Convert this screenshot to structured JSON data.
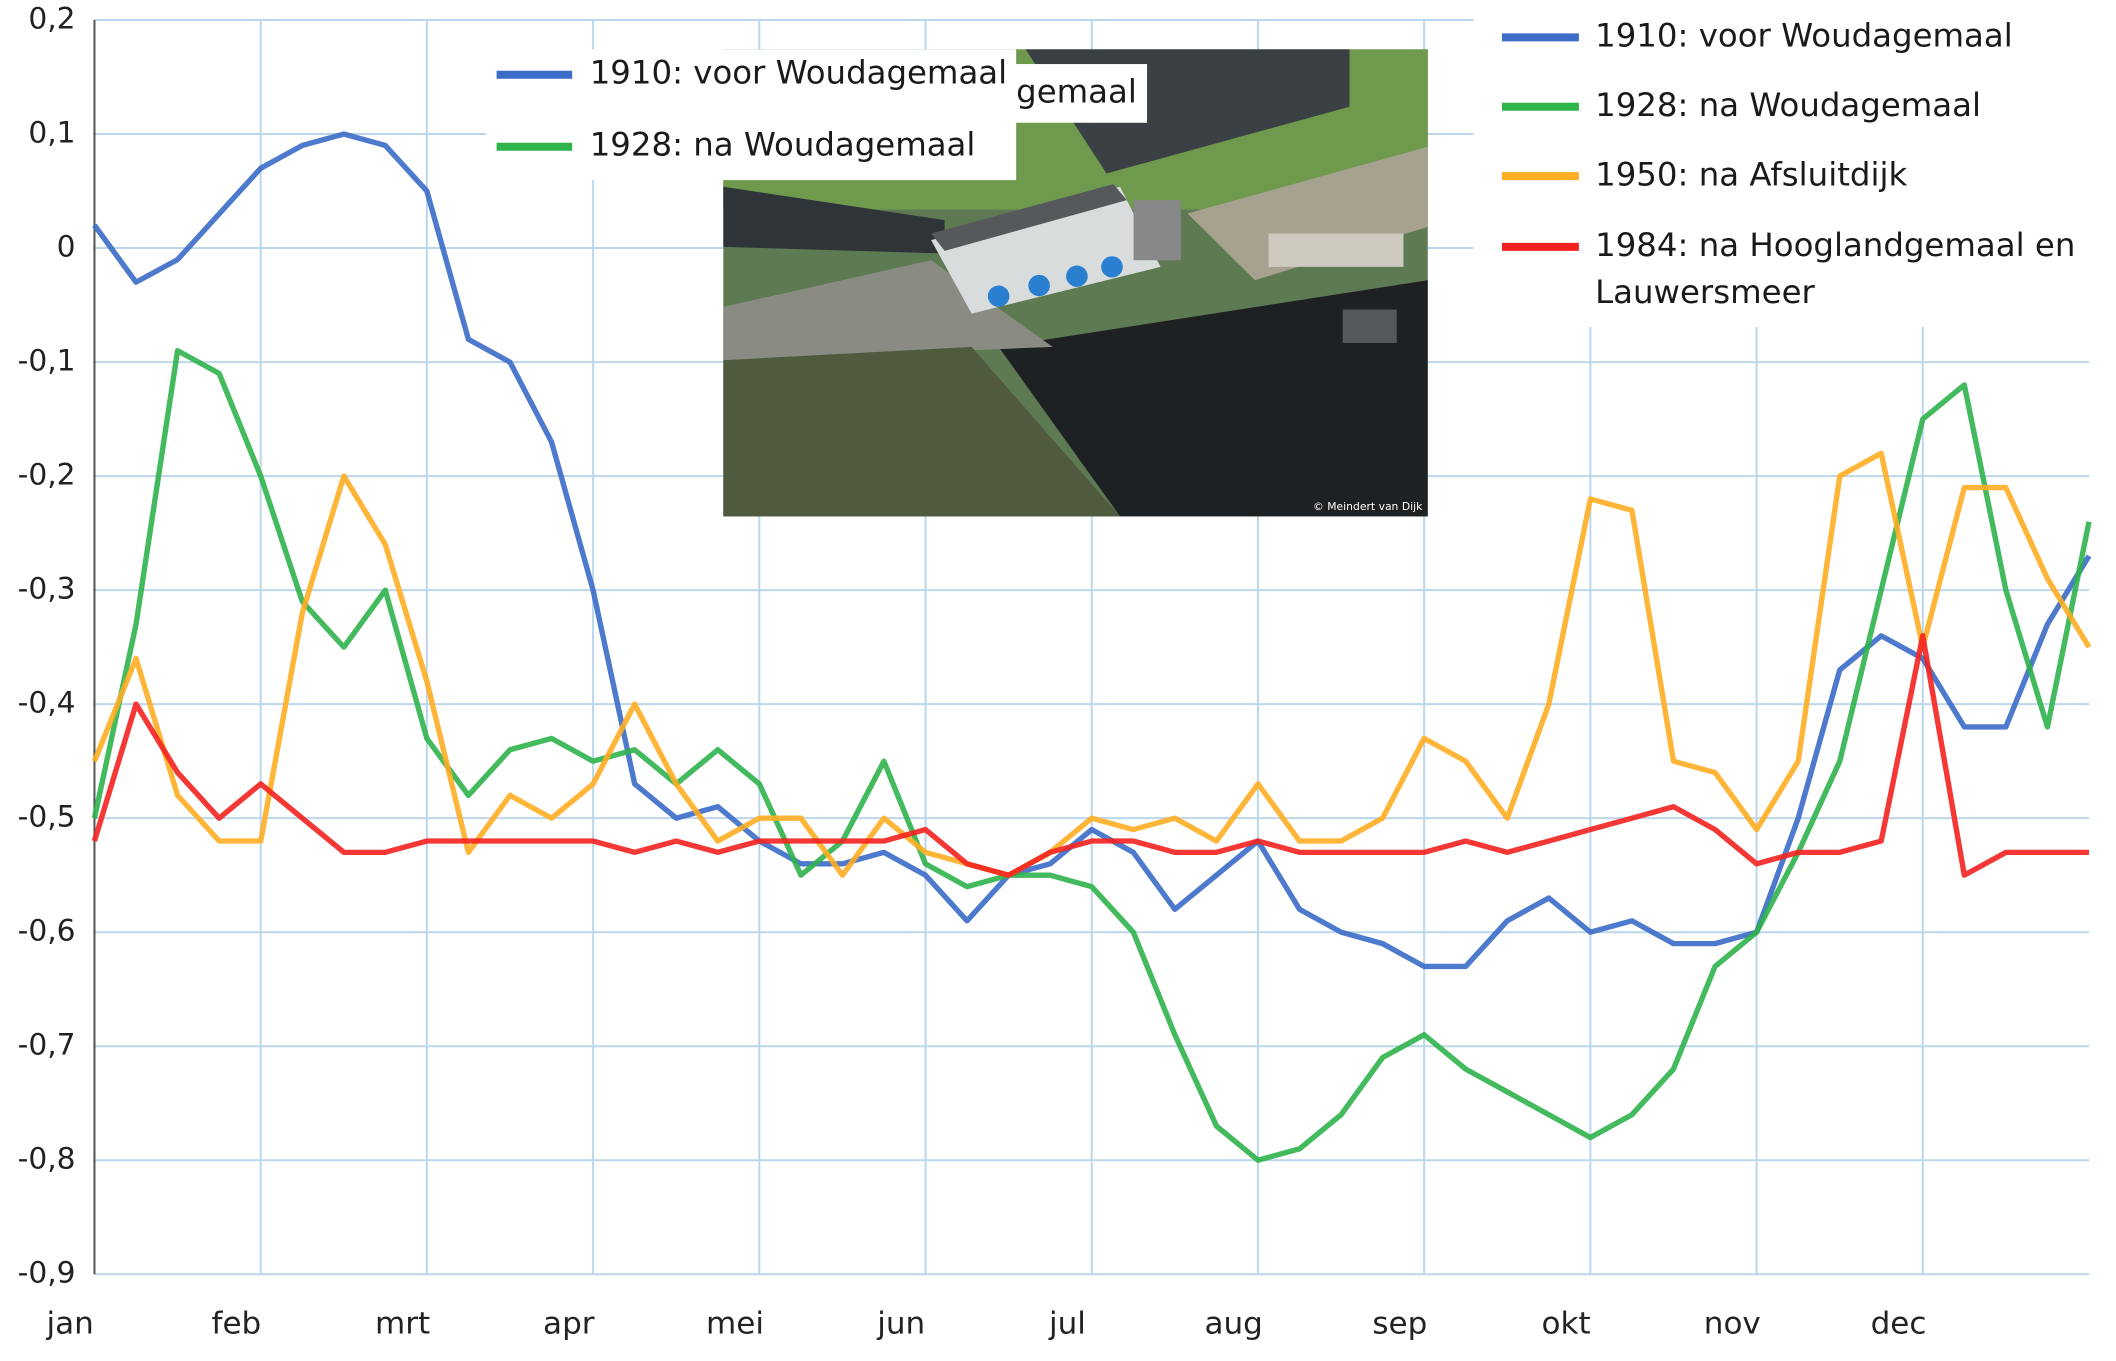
{
  "chart_data": {
    "type": "line",
    "categories": [
      "jan",
      null,
      null,
      null,
      "feb",
      null,
      null,
      null,
      "mrt",
      null,
      null,
      null,
      "apr",
      null,
      null,
      null,
      "mei",
      null,
      null,
      null,
      "jun",
      null,
      null,
      null,
      "jul",
      null,
      null,
      null,
      "aug",
      null,
      null,
      null,
      "sep",
      null,
      null,
      null,
      "okt",
      null,
      null,
      null,
      "nov",
      null,
      null,
      null,
      "dec",
      null,
      null,
      null,
      null
    ],
    "ylim": [
      -0.9,
      0.2
    ],
    "yticks": [
      {
        "value": -0.9,
        "label": "-0,9"
      },
      {
        "value": -0.8,
        "label": "-0,8"
      },
      {
        "value": -0.7,
        "label": "-0,7"
      },
      {
        "value": -0.6,
        "label": "-0,6"
      },
      {
        "value": -0.5,
        "label": "-0,5"
      },
      {
        "value": -0.4,
        "label": "-0,4"
      },
      {
        "value": -0.3,
        "label": "-0,3"
      },
      {
        "value": -0.2,
        "label": "-0,2"
      },
      {
        "value": -0.1,
        "label": "-0,1"
      },
      0,
      {
        "value": 0.1,
        "label": "0,1"
      },
      {
        "value": 0.2,
        "label": "0,2"
      }
    ],
    "grid": true,
    "legend": "top-right",
    "series": [
      {
        "name": "1910: voor Woudagemaal",
        "color": "#3a6cc8",
        "values": [
          0.02,
          -0.03,
          -0.01,
          0.03,
          0.07,
          0.09,
          0.1,
          0.09,
          0.05,
          -0.08,
          -0.1,
          -0.17,
          -0.3,
          -0.47,
          -0.5,
          -0.49,
          -0.52,
          -0.54,
          -0.54,
          -0.53,
          -0.55,
          -0.59,
          -0.55,
          -0.54,
          -0.51,
          -0.53,
          -0.58,
          -0.55,
          -0.52,
          -0.58,
          -0.6,
          -0.61,
          -0.63,
          -0.63,
          -0.59,
          -0.57,
          -0.6,
          -0.59,
          -0.61,
          -0.61,
          -0.6,
          -0.5,
          -0.37,
          -0.34,
          -0.36,
          -0.42,
          -0.42,
          -0.33,
          -0.27
        ]
      },
      {
        "name": "1928: na Woudagemaal",
        "color": "#2fb34b",
        "values": [
          -0.5,
          -0.33,
          -0.09,
          -0.11,
          -0.2,
          -0.31,
          -0.35,
          -0.3,
          -0.43,
          -0.48,
          -0.44,
          -0.43,
          -0.45,
          -0.44,
          -0.47,
          -0.44,
          -0.47,
          -0.55,
          -0.52,
          -0.45,
          -0.54,
          -0.56,
          -0.55,
          -0.55,
          -0.56,
          -0.6,
          -0.69,
          -0.77,
          -0.8,
          -0.79,
          -0.76,
          -0.71,
          -0.69,
          -0.72,
          -0.74,
          -0.76,
          -0.78,
          -0.76,
          -0.72,
          -0.63,
          -0.6,
          -0.53,
          -0.45,
          -0.3,
          -0.15,
          -0.12,
          -0.3,
          -0.42,
          -0.24
        ]
      },
      {
        "name": "1950: na Afsluitdijk",
        "color": "#ffad22",
        "values": [
          -0.45,
          -0.36,
          -0.48,
          -0.52,
          -0.52,
          -0.32,
          -0.2,
          -0.26,
          -0.38,
          -0.53,
          -0.48,
          -0.5,
          -0.47,
          -0.4,
          -0.47,
          -0.52,
          -0.5,
          -0.5,
          -0.55,
          -0.5,
          -0.53,
          -0.54,
          -0.55,
          -0.53,
          -0.5,
          -0.51,
          -0.5,
          -0.52,
          -0.47,
          -0.52,
          -0.52,
          -0.5,
          -0.43,
          -0.45,
          -0.5,
          -0.4,
          -0.22,
          -0.23,
          -0.45,
          -0.46,
          -0.51,
          -0.45,
          -0.2,
          -0.18,
          -0.35,
          -0.21,
          -0.21,
          -0.29,
          -0.35
        ]
      },
      {
        "name": "1984: na Hooglandgemaal en Lauwersmeer",
        "color": "#f4221f",
        "values": [
          -0.52,
          -0.4,
          -0.46,
          -0.5,
          -0.47,
          -0.5,
          -0.53,
          -0.53,
          -0.52,
          -0.52,
          -0.52,
          -0.52,
          -0.52,
          -0.53,
          -0.52,
          -0.53,
          -0.52,
          -0.52,
          -0.52,
          -0.52,
          -0.51,
          -0.54,
          -0.55,
          -0.53,
          -0.52,
          -0.52,
          -0.53,
          -0.53,
          -0.52,
          -0.53,
          -0.53,
          -0.53,
          -0.53,
          -0.52,
          -0.53,
          -0.52,
          -0.51,
          -0.5,
          -0.49,
          -0.51,
          -0.54,
          -0.53,
          -0.53,
          -0.52,
          -0.34,
          -0.55,
          -0.53,
          -0.53,
          -0.53
        ]
      }
    ]
  },
  "inset": {
    "legend": [
      "1910: voor Woudagemaal",
      "1928: na Woudagemaal"
    ],
    "caption_fragment": "gemaal",
    "photo_credit": "© Meindert van Dijk"
  }
}
